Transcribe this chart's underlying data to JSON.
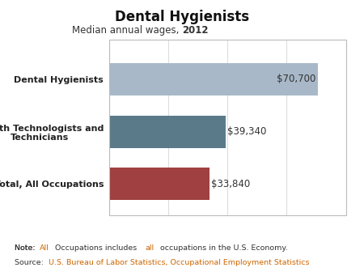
{
  "title": "Dental Hygienists",
  "subtitle_normal": "Median annual wages, ",
  "subtitle_bold": "2012",
  "categories": [
    "Dental Hygienists",
    "Health Technologists and\nTechnicians",
    "Total, All Occupations"
  ],
  "values": [
    70700,
    39340,
    33840
  ],
  "labels": [
    "$70,700",
    "$39,340",
    "$33,840"
  ],
  "bar_colors": [
    "#a8b8c8",
    "#5a7a8a",
    "#a04040"
  ],
  "xlim": [
    0,
    80000
  ],
  "note_prefix": "Note: ",
  "note_all": "All",
  "note_suffix": " Occupations includes ",
  "note_all2": "all",
  "note_suffix2": " occupations in the U.S. Economy.",
  "source_prefix": "Source: ",
  "source_rest": "U.S. Bureau of Labor Statistics, Occupational Employment Statistics",
  "orange_color": "#cc6600",
  "note_color": "#333333",
  "bg_color": "#ffffff",
  "bar_height": 0.62,
  "grid_color": "#dddddd",
  "border_color": "#bbbbbb"
}
